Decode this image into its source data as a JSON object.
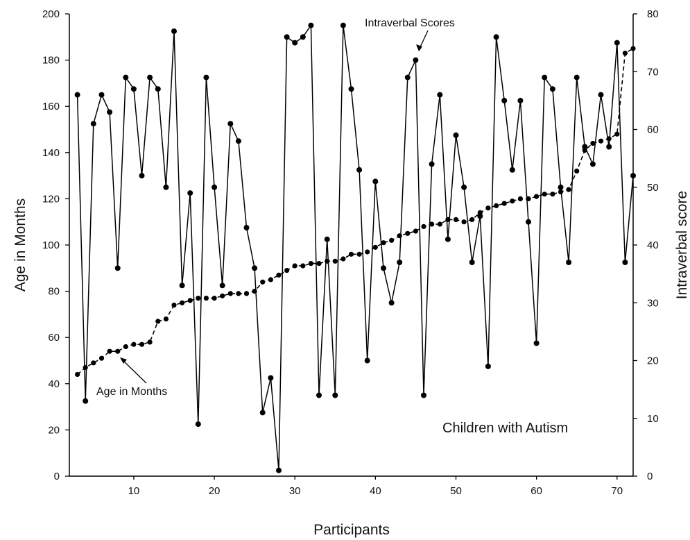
{
  "chart_data": {
    "type": "line",
    "title": "",
    "subtitle": "Children with Autism",
    "xlabel": "Participants",
    "ylabel_left": "Age in Months",
    "ylabel_right": "Intraverbal score",
    "xlim": [
      2,
      72
    ],
    "ylim_left": [
      0,
      200
    ],
    "ylim_right": [
      0,
      80
    ],
    "x_ticks": [
      10,
      20,
      30,
      40,
      50,
      60,
      70
    ],
    "y_left_ticks": [
      0,
      20,
      40,
      60,
      80,
      100,
      120,
      140,
      160,
      180,
      200
    ],
    "y_right_ticks": [
      0,
      10,
      20,
      30,
      40,
      50,
      60,
      70,
      80
    ],
    "grid": false,
    "annotations": [
      {
        "text": "Intraverbal Scores",
        "series": "intraverbal"
      },
      {
        "text": "Age in Months",
        "series": "age"
      }
    ],
    "series": [
      {
        "key": "intraverbal",
        "style": "solid",
        "axis": "right",
        "x": [
          3,
          4,
          5,
          6,
          7,
          8,
          9,
          10,
          11,
          12,
          13,
          14,
          15,
          16,
          17,
          18,
          19,
          20,
          21,
          22,
          23,
          24,
          25,
          26,
          27,
          28,
          29,
          30,
          31,
          32,
          33,
          34,
          35,
          36,
          37,
          38,
          39,
          40,
          41,
          42,
          43,
          44,
          45,
          46,
          47,
          48,
          49,
          50,
          51,
          52,
          53,
          54,
          55,
          56,
          57,
          58,
          59,
          60,
          61,
          62,
          63,
          64,
          65,
          66,
          67,
          68,
          69,
          70,
          71,
          72
        ],
        "y": [
          66,
          13,
          61,
          66,
          63,
          36,
          69,
          67,
          52,
          69,
          67,
          50,
          77,
          33,
          49,
          9,
          69,
          50,
          33,
          61,
          58,
          43,
          36,
          11,
          17,
          1,
          76,
          75,
          76,
          78,
          14,
          41,
          14,
          78,
          67,
          53,
          20,
          51,
          36,
          30,
          37,
          69,
          72,
          14,
          54,
          66,
          41,
          59,
          50,
          37,
          45,
          19,
          76,
          65,
          53,
          65,
          44,
          23,
          69,
          67,
          50,
          37,
          69,
          57,
          54,
          66,
          57,
          75,
          37,
          52
        ]
      },
      {
        "key": "age",
        "style": "dashed",
        "axis": "left",
        "x": [
          3,
          4,
          5,
          6,
          7,
          8,
          9,
          10,
          11,
          12,
          13,
          14,
          15,
          16,
          17,
          18,
          19,
          20,
          21,
          22,
          23,
          24,
          25,
          26,
          27,
          28,
          29,
          30,
          31,
          32,
          33,
          34,
          35,
          36,
          37,
          38,
          39,
          40,
          41,
          42,
          43,
          44,
          45,
          46,
          47,
          48,
          49,
          50,
          51,
          52,
          53,
          54,
          55,
          56,
          57,
          58,
          59,
          60,
          61,
          62,
          63,
          64,
          65,
          66,
          67,
          68,
          69,
          70,
          71,
          72
        ],
        "y": [
          44,
          47,
          49,
          51,
          54,
          54,
          56,
          57,
          57,
          58,
          67,
          68,
          74,
          75,
          76,
          77,
          77,
          77,
          78,
          79,
          79,
          79,
          80,
          84,
          85,
          87,
          89,
          91,
          91,
          92,
          92,
          93,
          93,
          94,
          96,
          96,
          97,
          99,
          101,
          102,
          104,
          105,
          106,
          108,
          109,
          109,
          111,
          111,
          110,
          111,
          114,
          116,
          117,
          118,
          119,
          120,
          120,
          121,
          122,
          122,
          123,
          124,
          132,
          141,
          144,
          145,
          146,
          148,
          183,
          185
        ]
      }
    ]
  }
}
